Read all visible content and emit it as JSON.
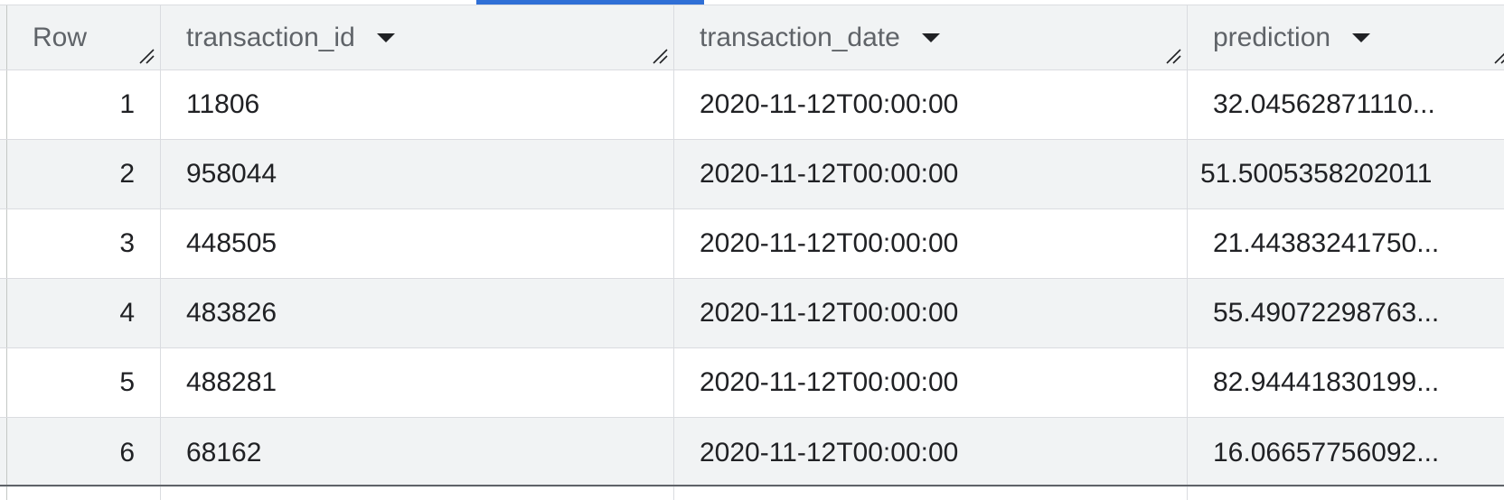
{
  "columns": {
    "row": "Row",
    "transaction_id": "transaction_id",
    "transaction_date": "transaction_date",
    "prediction": "prediction"
  },
  "icons": {
    "sort": "arrow-drop-down-icon",
    "resize": "column-resize-handle-icon"
  },
  "colors": {
    "accent": "#2f6fd6",
    "header_bg": "#f1f3f4",
    "border": "#dadce0"
  },
  "rows": [
    {
      "row": "1",
      "transaction_id": "11806",
      "transaction_date": "2020-11-12T00:00:00",
      "prediction": "32.04562871110..."
    },
    {
      "row": "2",
      "transaction_id": "958044",
      "transaction_date": "2020-11-12T00:00:00",
      "prediction": "51.5005358202011"
    },
    {
      "row": "3",
      "transaction_id": "448505",
      "transaction_date": "2020-11-12T00:00:00",
      "prediction": "21.44383241750..."
    },
    {
      "row": "4",
      "transaction_id": "483826",
      "transaction_date": "2020-11-12T00:00:00",
      "prediction": "55.49072298763..."
    },
    {
      "row": "5",
      "transaction_id": "488281",
      "transaction_date": "2020-11-12T00:00:00",
      "prediction": "82.94441830199..."
    },
    {
      "row": "6",
      "transaction_id": "68162",
      "transaction_date": "2020-11-12T00:00:00",
      "prediction": "16.06657756092..."
    }
  ]
}
